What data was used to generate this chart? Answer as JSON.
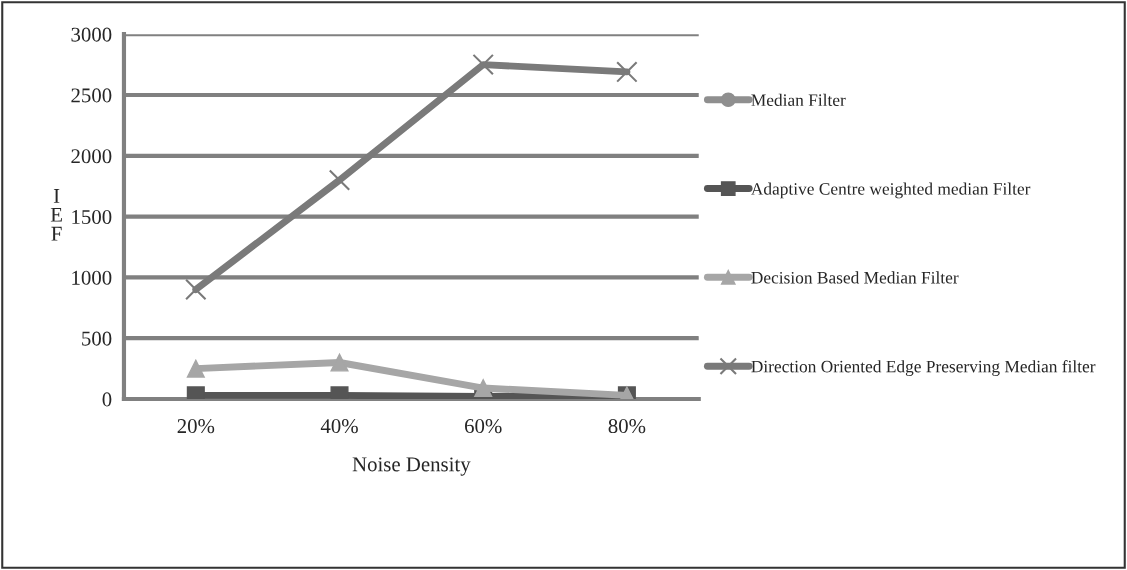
{
  "chart_data": {
    "type": "line",
    "xlabel": "Noise Density",
    "ylabel": "IEF",
    "categories": [
      "20%",
      "40%",
      "60%",
      "80%"
    ],
    "series": [
      {
        "name": "Median Filter",
        "color": "#8f8f8f",
        "marker": "circle",
        "values": [
          null,
          null,
          null,
          null
        ]
      },
      {
        "name": "Adaptive Centre weighted median Filter",
        "color": "#555555",
        "marker": "square",
        "values": [
          30,
          30,
          20,
          30
        ]
      },
      {
        "name": "Decision Based Median Filter",
        "color": "#a6a6a6",
        "marker": "triangle",
        "values": [
          250,
          300,
          90,
          30
        ]
      },
      {
        "name": "Direction Oriented Edge Preserving Median filter",
        "color": "#7a7a7a",
        "marker": "cross",
        "values": [
          900,
          1800,
          2750,
          2690
        ]
      }
    ],
    "ylim": [
      0,
      3000
    ],
    "yticks": [
      0,
      500,
      1000,
      1500,
      2000,
      2500,
      3000
    ],
    "grid": "y",
    "legend": "right"
  }
}
